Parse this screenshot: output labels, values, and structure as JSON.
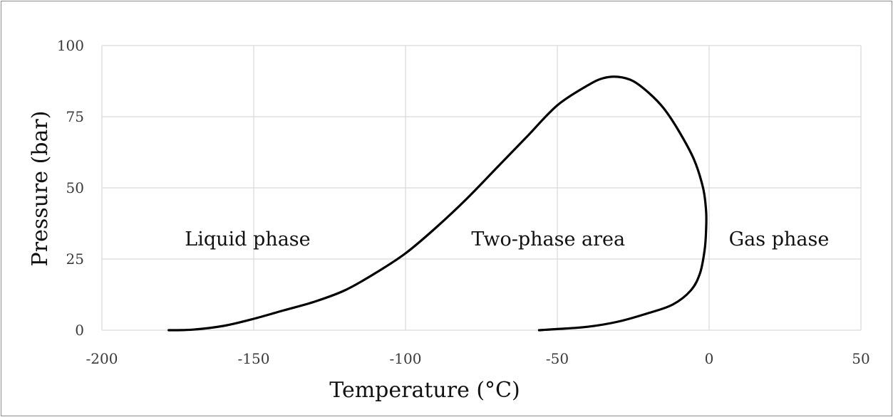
{
  "chart_data": {
    "type": "line",
    "title": "",
    "xlabel": "Temperature (°C)",
    "ylabel": "Pressure (bar)",
    "xlim": [
      -200,
      50
    ],
    "ylim": [
      0,
      100
    ],
    "x_ticks": [
      "-200",
      "-150",
      "-100",
      "-50",
      "0",
      "50"
    ],
    "y_ticks": [
      "0",
      "25",
      "50",
      "75",
      "100"
    ],
    "grid": true,
    "legend": "none",
    "line_color": "#000000",
    "grid_color": "#d9d9d9",
    "annotations": [
      {
        "text": "Liquid phase",
        "x": -152,
        "y": 32
      },
      {
        "text": "Two-phase area",
        "x": -53,
        "y": 32
      },
      {
        "text": "Gas phase",
        "x": 23,
        "y": 32
      }
    ],
    "series": [
      {
        "points": [
          [
            -178,
            0
          ],
          [
            -170,
            0.2
          ],
          [
            -160,
            1.5
          ],
          [
            -150,
            4
          ],
          [
            -140,
            7
          ],
          [
            -130,
            10
          ],
          [
            -120,
            14
          ],
          [
            -110,
            20
          ],
          [
            -100,
            27
          ],
          [
            -90,
            36
          ],
          [
            -80,
            46
          ],
          [
            -70,
            57
          ],
          [
            -60,
            68
          ],
          [
            -50,
            79
          ],
          [
            -40,
            86
          ],
          [
            -35,
            88.5
          ],
          [
            -30,
            89
          ],
          [
            -25,
            87.5
          ],
          [
            -20,
            83.5
          ],
          [
            -15,
            78
          ],
          [
            -10,
            70
          ],
          [
            -5,
            60
          ],
          [
            -2,
            50
          ],
          [
            -1,
            42
          ],
          [
            -1,
            35
          ],
          [
            -1.5,
            28
          ],
          [
            -3,
            20
          ],
          [
            -6,
            14
          ],
          [
            -12,
            9
          ],
          [
            -20,
            6
          ],
          [
            -30,
            3
          ],
          [
            -40,
            1.2
          ],
          [
            -50,
            0.4
          ],
          [
            -56,
            0
          ]
        ]
      }
    ]
  }
}
